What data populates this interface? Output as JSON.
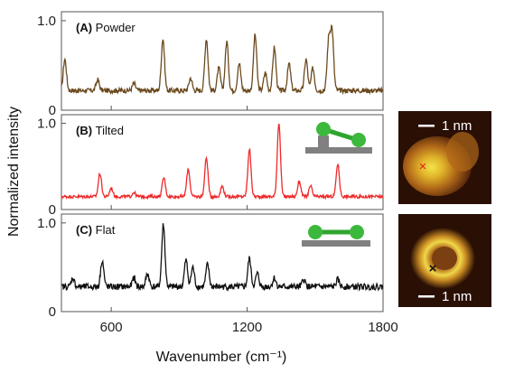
{
  "chart_data": {
    "type": "line",
    "xlabel": "Wavenumber (cm⁻¹)",
    "ylabel": "Normalized intensity",
    "xlim": [
      380,
      1800
    ],
    "x_ticks": [
      600,
      1200,
      1800
    ],
    "ylim": [
      0,
      1.1
    ],
    "y_ticks": [
      0,
      1.0
    ],
    "y_tick_labels": [
      "0",
      "1.0"
    ],
    "grid": false,
    "panels": [
      {
        "id": "A",
        "label_letter": "(A)",
        "label_text": "Powder",
        "color": "#6b4a1e",
        "baseline": 0.22,
        "noise": 0.028,
        "peaks": [
          {
            "x": 395,
            "height": 0.35
          },
          {
            "x": 540,
            "height": 0.12
          },
          {
            "x": 700,
            "height": 0.08
          },
          {
            "x": 828,
            "height": 0.58
          },
          {
            "x": 950,
            "height": 0.14
          },
          {
            "x": 1020,
            "height": 0.58
          },
          {
            "x": 1075,
            "height": 0.25
          },
          {
            "x": 1110,
            "height": 0.55
          },
          {
            "x": 1165,
            "height": 0.3
          },
          {
            "x": 1235,
            "height": 0.62
          },
          {
            "x": 1280,
            "height": 0.2
          },
          {
            "x": 1320,
            "height": 0.48
          },
          {
            "x": 1385,
            "height": 0.3
          },
          {
            "x": 1460,
            "height": 0.35
          },
          {
            "x": 1490,
            "height": 0.25
          },
          {
            "x": 1560,
            "height": 0.55
          },
          {
            "x": 1575,
            "height": 0.65
          }
        ]
      },
      {
        "id": "B",
        "label_letter": "(B)",
        "label_text": "Tilted",
        "color": "#ee2a2a",
        "baseline": 0.15,
        "noise": 0.018,
        "peaks": [
          {
            "x": 550,
            "height": 0.27
          },
          {
            "x": 600,
            "height": 0.1
          },
          {
            "x": 700,
            "height": 0.05
          },
          {
            "x": 832,
            "height": 0.22
          },
          {
            "x": 940,
            "height": 0.32
          },
          {
            "x": 1020,
            "height": 0.45
          },
          {
            "x": 1090,
            "height": 0.12
          },
          {
            "x": 1210,
            "height": 0.55
          },
          {
            "x": 1340,
            "height": 0.86
          },
          {
            "x": 1430,
            "height": 0.18
          },
          {
            "x": 1480,
            "height": 0.12
          },
          {
            "x": 1600,
            "height": 0.38
          }
        ]
      },
      {
        "id": "C",
        "label_letter": "(C)",
        "label_text": "Flat",
        "color": "#111111",
        "baseline": 0.28,
        "noise": 0.035,
        "peaks": [
          {
            "x": 430,
            "height": 0.1
          },
          {
            "x": 560,
            "height": 0.3
          },
          {
            "x": 700,
            "height": 0.1
          },
          {
            "x": 760,
            "height": 0.15
          },
          {
            "x": 830,
            "height": 0.7
          },
          {
            "x": 930,
            "height": 0.3
          },
          {
            "x": 960,
            "height": 0.22
          },
          {
            "x": 1025,
            "height": 0.25
          },
          {
            "x": 1210,
            "height": 0.32
          },
          {
            "x": 1245,
            "height": 0.15
          },
          {
            "x": 1320,
            "height": 0.1
          },
          {
            "x": 1450,
            "height": 0.08
          },
          {
            "x": 1600,
            "height": 0.08
          }
        ]
      }
    ],
    "stm_images": [
      {
        "scale_label": "1 nm",
        "marker": "×",
        "marker_color": "#e02020"
      },
      {
        "scale_label": "1 nm",
        "marker": "×",
        "marker_color": "#111111"
      }
    ]
  }
}
